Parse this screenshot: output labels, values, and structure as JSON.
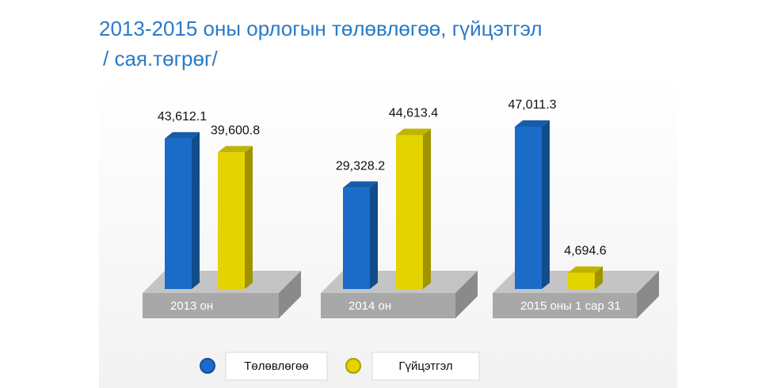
{
  "chart_data": {
    "type": "bar3d",
    "title": "2013-2015 оны орлогын төлөвлөгөө, гүйцэтгэл",
    "subtitle": "/ сая.төгрөг/",
    "categories": [
      "2013 он",
      "2014 он",
      "2015 оны 1 сар 31"
    ],
    "series": [
      {
        "name": "Төлөвлөгөө",
        "color": "#1a6cc8",
        "values": [
          43612.1,
          29328.2,
          47011.3
        ],
        "value_labels": [
          "43,612.1",
          "29,328.2",
          "47,011.3"
        ]
      },
      {
        "name": "Гүйцэтгэл",
        "color": "#e3d400",
        "values": [
          39600.8,
          44613.4,
          4694.6
        ],
        "value_labels": [
          "39,600.8",
          "44,613.4",
          "4,694.6"
        ]
      }
    ],
    "legend": "bottom"
  }
}
